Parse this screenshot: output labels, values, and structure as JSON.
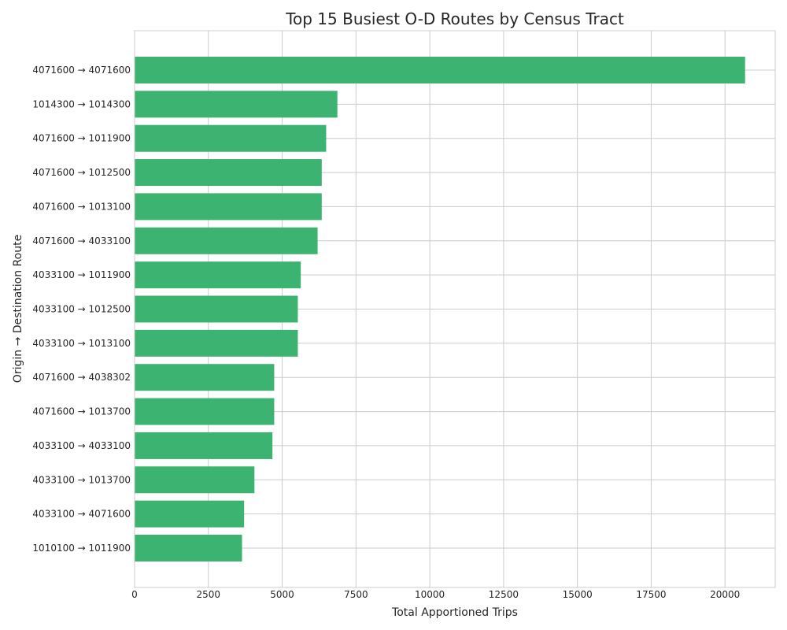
{
  "chart_data": {
    "type": "bar",
    "orientation": "horizontal",
    "title": "Top 15 Busiest O-D Routes by Census Tract",
    "xlabel": "Total Apportioned Trips",
    "ylabel": "Origin → Destination Route",
    "xlim": [
      0,
      21700
    ],
    "xticks": [
      0,
      2500,
      5000,
      7500,
      10000,
      12500,
      15000,
      17500,
      20000
    ],
    "grid": true,
    "bar_color": "#3cb371",
    "categories": [
      "4071600 → 4071600",
      "1014300 → 1014300",
      "4071600 → 1011900",
      "4071600 → 1012500",
      "4071600 → 1013100",
      "4071600 → 4033100",
      "4033100 → 1011900",
      "4033100 → 1012500",
      "4033100 → 1013100",
      "4071600 → 4038302",
      "4071600 → 1013700",
      "4033100 → 4033100",
      "4033100 → 1013700",
      "4033100 → 4071600",
      "1010100 → 1011900"
    ],
    "values": [
      20680,
      6870,
      6490,
      6340,
      6340,
      6200,
      5630,
      5530,
      5530,
      4730,
      4730,
      4670,
      4060,
      3710,
      3640
    ]
  }
}
